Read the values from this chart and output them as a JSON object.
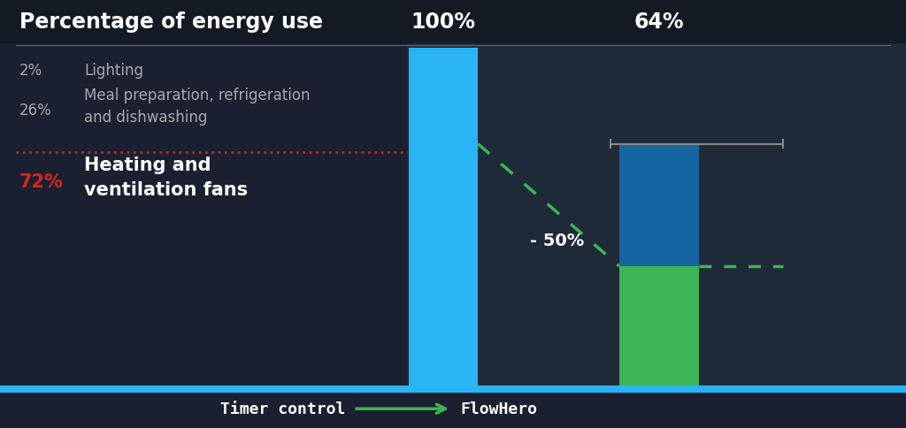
{
  "bg_color_top": "#1a2030",
  "bg_color_bottom": "#1e2d3d",
  "fig_width": 10.24,
  "fig_height": 4.85,
  "title": "Percentage of energy use",
  "title_color": "#ffffff",
  "title_fontsize": 17,
  "label_2pct": "2%",
  "label_2pct_text": "Lighting",
  "label_26pct": "26%",
  "label_26pct_text": "Meal preparation, refrigeration\nand dishwashing",
  "label_72pct": "72%",
  "label_72pct_text": "Heating and\nventilation fans",
  "bar1_color": "#29b5f5",
  "bar1_label": "100%",
  "bar2_blue_color": "#1565a0",
  "bar2_green_color": "#3db554",
  "bar2_label": "64%",
  "reduction_label": "- 50%",
  "dashed_line_color": "#3db554",
  "red_dotted_color": "#cc2222",
  "separator_color": "#666666",
  "gray_line_color": "#888888",
  "footer_bg": "#0d1520",
  "footer_text_left": "Timer control",
  "footer_text_right": "FlowHero",
  "footer_color": "#ffffff",
  "footer_arrow_color": "#3db554",
  "blue_bottom_line_color": "#29b5f5"
}
